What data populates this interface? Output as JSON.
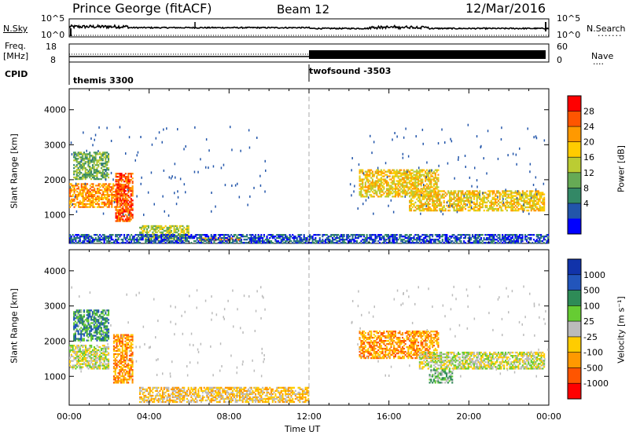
{
  "header": {
    "station": "Prince George (fitACF)",
    "beam": "Beam 12",
    "date": "12/Mar/2016"
  },
  "top_panels": {
    "nsky_label": "N.Sky",
    "nsearch_label": "N.Search",
    "nsky_ticks": [
      "10^5",
      "10^0"
    ],
    "nsearch_ticks": [
      "10^5",
      "10^0"
    ],
    "freq_label_line1": "Freq.",
    "freq_label_line2": "[MHz]",
    "freq_ticks": [
      "18",
      "8"
    ],
    "nave_label": "Nave",
    "nave_ticks": [
      "60",
      "0"
    ],
    "cpid_label": "CPID",
    "cpid_segments": [
      {
        "name": "themis 3300",
        "start_hour": 0,
        "end_hour": 12
      },
      {
        "name": "twofsound -3503",
        "start_hour": 12,
        "end_hour": 24
      }
    ]
  },
  "colorbars": {
    "power": {
      "label": "Power [dB]",
      "ticks": [
        "28",
        "24",
        "20",
        "16",
        "12",
        "8",
        "4"
      ],
      "colors": [
        "#ff0000",
        "#ff5500",
        "#ff9900",
        "#ffcc00",
        "#bbcc33",
        "#66aa55",
        "#338866",
        "#2255aa",
        "#0000ff"
      ]
    },
    "velocity": {
      "label": "Velocity [m s⁻¹]",
      "ticks": [
        "1000",
        "500",
        "100",
        "25",
        "-25",
        "-100",
        "-500",
        "-1000"
      ],
      "colors": [
        "#1133aa",
        "#2255bb",
        "#2e8b57",
        "#66cc33",
        "#bbbbbb",
        "#ffcc00",
        "#ff9900",
        "#ff5500",
        "#ff0000"
      ]
    }
  },
  "chart_data": [
    {
      "type": "heatmap",
      "title": "",
      "xlabel": "Time UT",
      "ylabel": "Slant Range [km]",
      "xlim": [
        0,
        24
      ],
      "ylim": [
        180,
        4600
      ],
      "x_ticks": [
        "00:00",
        "04:00",
        "08:00",
        "12:00",
        "16:00",
        "20:00",
        "00:00"
      ],
      "y_ticks": [
        "1000",
        "2000",
        "3000",
        "4000"
      ],
      "colorbar": "Power [dB]",
      "regions": [
        {
          "t0": 0.0,
          "t1": 2.6,
          "r0": 1200,
          "r1": 1900,
          "level": 6
        },
        {
          "t0": 0.2,
          "t1": 2.0,
          "r0": 2000,
          "r1": 2800,
          "level": 3
        },
        {
          "t0": 2.3,
          "t1": 3.2,
          "r0": 800,
          "r1": 2200,
          "level": 7
        },
        {
          "t0": 3.5,
          "t1": 6.0,
          "r0": 250,
          "r1": 700,
          "level": 4
        },
        {
          "t0": 6.5,
          "t1": 8.6,
          "r0": 250,
          "r1": 350,
          "level": 6
        },
        {
          "t0": 14.5,
          "t1": 18.5,
          "r0": 1500,
          "r1": 2300,
          "level": 5
        },
        {
          "t0": 17.0,
          "t1": 23.8,
          "r0": 1100,
          "r1": 1700,
          "level": 5
        },
        {
          "t0": 0.0,
          "t1": 24.0,
          "r0": 180,
          "r1": 450,
          "level": 1
        }
      ]
    },
    {
      "type": "heatmap",
      "title": "",
      "xlabel": "Time UT",
      "ylabel": "Slant Range [km]",
      "xlim": [
        0,
        24
      ],
      "ylim": [
        180,
        4600
      ],
      "x_ticks": [
        "00:00",
        "04:00",
        "08:00",
        "12:00",
        "16:00",
        "20:00",
        "00:00"
      ],
      "y_ticks": [
        "1000",
        "2000",
        "3000",
        "4000"
      ],
      "colorbar": "Velocity [m s⁻¹]",
      "regions": [
        {
          "t0": 0.0,
          "t1": 2.0,
          "r0": 1200,
          "r1": 1900,
          "level": 4
        },
        {
          "t0": 0.2,
          "t1": 2.0,
          "r0": 2000,
          "r1": 2900,
          "level": 2
        },
        {
          "t0": 2.2,
          "t1": 3.2,
          "r0": 800,
          "r1": 2200,
          "level": 6
        },
        {
          "t0": 3.5,
          "t1": 12.0,
          "r0": 250,
          "r1": 700,
          "level": 5
        },
        {
          "t0": 14.5,
          "t1": 18.5,
          "r0": 1500,
          "r1": 2300,
          "level": 6
        },
        {
          "t0": 17.5,
          "t1": 23.8,
          "r0": 1200,
          "r1": 1700,
          "level": 4
        },
        {
          "t0": 18.0,
          "t1": 19.2,
          "r0": 800,
          "r1": 1200,
          "level": 3
        }
      ]
    }
  ]
}
